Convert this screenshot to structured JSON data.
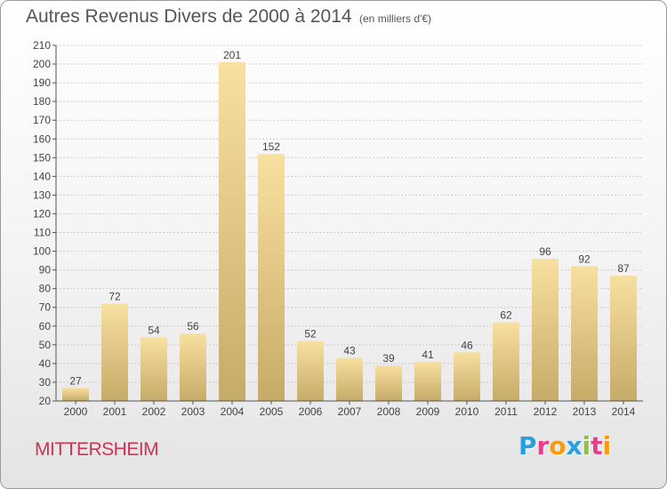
{
  "title": "Autres Revenus Divers de 2000 à 2014",
  "subtitle": "(en milliers d'€)",
  "commune": "MITTERSHEIM",
  "logo": {
    "text": "Proxiti",
    "letters": [
      {
        "ch": "P",
        "color": "#2a9ee0"
      },
      {
        "ch": "r",
        "color": "#e83e8c"
      },
      {
        "ch": "o",
        "color": "#f39c12"
      },
      {
        "ch": "x",
        "color": "#2a9ee0"
      },
      {
        "ch": "i",
        "color": "#8cc63f"
      },
      {
        "ch": "t",
        "color": "#e83e8c"
      },
      {
        "ch": "i",
        "color": "#f39c12"
      }
    ]
  },
  "colors": {
    "bar_light": "#f8e0a0",
    "bar_dark": "#c6ab68",
    "grid": "#cccccc",
    "axis": "#555555"
  },
  "chart_data": {
    "type": "bar",
    "title": "Autres Revenus Divers de 2000 à 2014",
    "subtitle": "(en milliers d'€)",
    "categories": [
      "2000",
      "2001",
      "2002",
      "2003",
      "2004",
      "2005",
      "2006",
      "2007",
      "2008",
      "2009",
      "2010",
      "2011",
      "2012",
      "2013",
      "2014"
    ],
    "values": [
      27,
      72,
      54,
      56,
      201,
      152,
      52,
      43,
      39,
      41,
      46,
      62,
      96,
      92,
      87
    ],
    "ylim": [
      20,
      210
    ],
    "yticks": [
      20,
      30,
      40,
      50,
      60,
      70,
      80,
      90,
      100,
      110,
      120,
      130,
      140,
      150,
      160,
      170,
      180,
      190,
      200,
      210
    ],
    "grid": true,
    "legend": "none"
  }
}
